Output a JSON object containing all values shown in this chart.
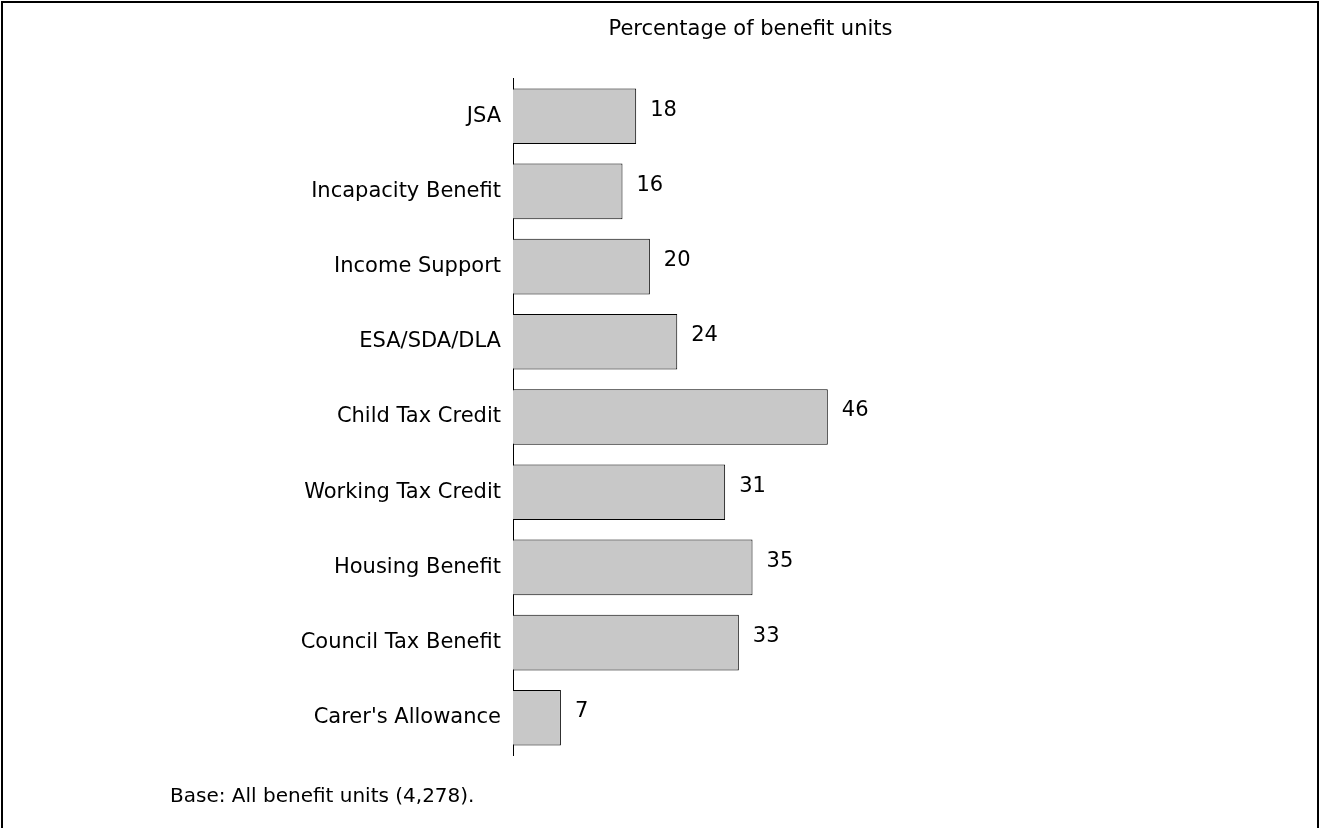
{
  "chart_data": {
    "type": "bar",
    "orientation": "horizontal",
    "title": "Percentage of benefit units",
    "categories": [
      "JSA",
      "Incapacity Benefit",
      "Income Support",
      "ESA/SDA/DLA",
      "Child Tax Credit",
      "Working Tax Credit",
      "Housing Benefit",
      "Council Tax Benefit",
      "Carer's Allowance"
    ],
    "values": [
      18,
      16,
      20,
      24,
      46,
      31,
      35,
      33,
      7
    ],
    "color": "#c8c8c8",
    "data_labels": true,
    "legend": false,
    "annotations": [
      "Base: All benefit units (4,278)."
    ]
  }
}
